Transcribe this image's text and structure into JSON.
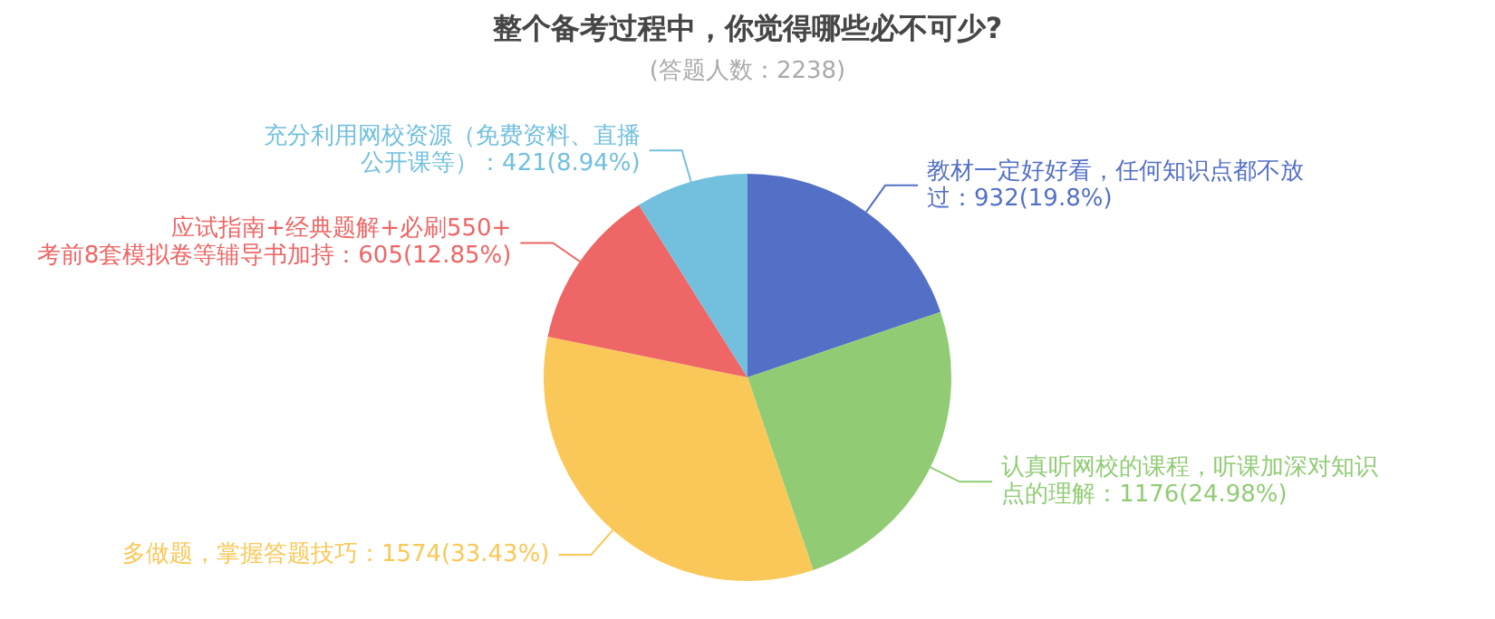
{
  "chart_data": {
    "type": "pie",
    "title": "整个备考过程中，你觉得哪些必不可少?",
    "subtitle": "(答题人数：2238)",
    "categories": [
      "教材一定好好看，任何知识点都不放过",
      "认真听网校的课程，听课加深对知识点的理解",
      "多做题，掌握答题技巧",
      "应试指南+经典题解+必刷550+考前8套模拟卷等辅导书加持",
      "充分利用网校资源（免费资料、直播公开课等）"
    ],
    "values": [
      932,
      1176,
      1574,
      605,
      421
    ],
    "value_labels": [
      "932(19.8%)",
      "1176(24.98%)",
      "1574(33.43%)",
      "605(12.85%)",
      "421(8.94%)"
    ],
    "colors": [
      "#5470c6",
      "#91cc75",
      "#fac858",
      "#ee6666",
      "#73c0de"
    ],
    "legend": false
  }
}
